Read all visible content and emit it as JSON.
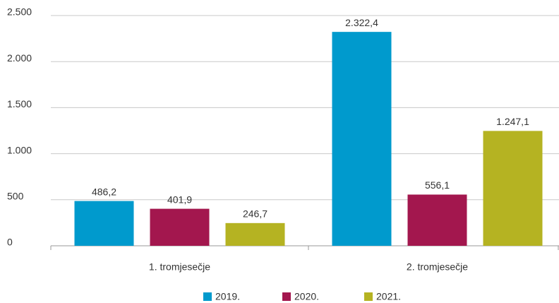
{
  "chart_data": {
    "type": "bar",
    "categories": [
      "1. tromjesečje",
      "2. tromjesečje"
    ],
    "series": [
      {
        "name": "2019.",
        "color": "#009acd",
        "values": [
          486.2,
          2322.4
        ],
        "value_labels": [
          "486,2",
          "2.322,4"
        ]
      },
      {
        "name": "2020.",
        "color": "#a3174e",
        "values": [
          401.9,
          556.1
        ],
        "value_labels": [
          "401,9",
          "556,1"
        ]
      },
      {
        "name": "2021.",
        "color": "#b5b322",
        "values": [
          246.7,
          1247.1
        ],
        "value_labels": [
          "246,7",
          "1.247,1"
        ]
      }
    ],
    "ylim": [
      0,
      2500
    ],
    "yticks": [
      0,
      500,
      {
        "value": 1000,
        "label": "1.000"
      },
      {
        "value": 1500,
        "label": "1.500"
      },
      {
        "value": 2000,
        "label": "2.000"
      },
      {
        "value": 2500,
        "label": "2.500"
      }
    ],
    "grid": true,
    "legend": "bottom"
  }
}
